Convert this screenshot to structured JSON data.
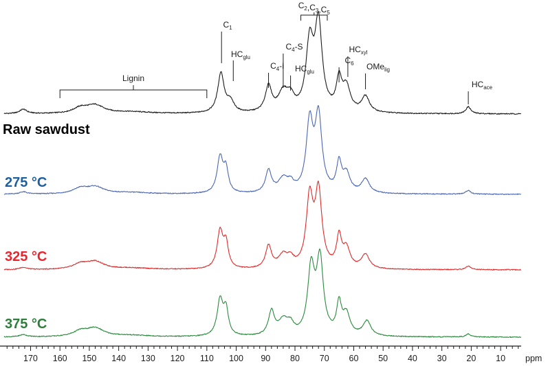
{
  "chart_data": {
    "type": "line",
    "xlabel": "ppm",
    "x_reversed": true,
    "xlim": [
      179,
      3
    ],
    "x_ticks": [
      170,
      160,
      150,
      140,
      130,
      120,
      110,
      100,
      90,
      80,
      70,
      60,
      50,
      40,
      30,
      20,
      10
    ],
    "x_tick_labels": [
      "170",
      "160",
      "150",
      "140",
      "130",
      "120",
      "110",
      "100",
      "90",
      "80",
      "70",
      "60",
      "50",
      "40",
      "30",
      "20",
      "10"
    ],
    "grid": false,
    "series": [
      {
        "name": "Raw sawdust",
        "color": "#1a1a1a",
        "label_color": "#000000",
        "peaks": [
          {
            "ppm": 172.5,
            "height": 0.05,
            "width": 1.5
          },
          {
            "ppm": 153,
            "height": 0.06,
            "width": 3
          },
          {
            "ppm": 148,
            "height": 0.09,
            "width": 3.5
          },
          {
            "ppm": 136,
            "height": 0.02,
            "width": 8
          },
          {
            "ppm": 105.2,
            "height": 0.45,
            "width": 1.3
          },
          {
            "ppm": 102,
            "height": 0.12,
            "width": 1.5
          },
          {
            "ppm": 89,
            "height": 0.29,
            "width": 1.3
          },
          {
            "ppm": 84,
            "height": 0.22,
            "width": 2.0
          },
          {
            "ppm": 81.5,
            "height": 0.14,
            "width": 1.5
          },
          {
            "ppm": 75,
            "height": 0.75,
            "width": 1.5
          },
          {
            "ppm": 72,
            "height": 0.98,
            "width": 1.5
          },
          {
            "ppm": 65,
            "height": 0.34,
            "width": 1.1
          },
          {
            "ppm": 62.5,
            "height": 0.28,
            "width": 1.6
          },
          {
            "ppm": 56,
            "height": 0.18,
            "width": 1.6
          },
          {
            "ppm": 21,
            "height": 0.08,
            "width": 1.0
          }
        ]
      },
      {
        "name": "275 °C",
        "color": "#4a66b5",
        "label_color": "#1f5fa0",
        "peaks": [
          {
            "ppm": 172.5,
            "height": 0.03,
            "width": 1.5
          },
          {
            "ppm": 153,
            "height": 0.07,
            "width": 3
          },
          {
            "ppm": 148,
            "height": 0.09,
            "width": 3.5
          },
          {
            "ppm": 136,
            "height": 0.02,
            "width": 8
          },
          {
            "ppm": 105.5,
            "height": 0.48,
            "width": 1.2
          },
          {
            "ppm": 103.5,
            "height": 0.3,
            "width": 1.0
          },
          {
            "ppm": 89,
            "height": 0.3,
            "width": 1.2
          },
          {
            "ppm": 84,
            "height": 0.18,
            "width": 2.0
          },
          {
            "ppm": 81.5,
            "height": 0.1,
            "width": 1.3
          },
          {
            "ppm": 75,
            "height": 0.92,
            "width": 1.4
          },
          {
            "ppm": 72,
            "height": 1.0,
            "width": 1.4
          },
          {
            "ppm": 65,
            "height": 0.38,
            "width": 1.0
          },
          {
            "ppm": 62.5,
            "height": 0.25,
            "width": 1.5
          },
          {
            "ppm": 56,
            "height": 0.19,
            "width": 1.6
          },
          {
            "ppm": 21,
            "height": 0.05,
            "width": 1.0
          }
        ]
      },
      {
        "name": "325 °C",
        "color": "#e02a2a",
        "label_color": "#e8262e",
        "peaks": [
          {
            "ppm": 172.5,
            "height": 0.03,
            "width": 1.5
          },
          {
            "ppm": 153,
            "height": 0.07,
            "width": 3
          },
          {
            "ppm": 148,
            "height": 0.1,
            "width": 3.5
          },
          {
            "ppm": 136,
            "height": 0.02,
            "width": 8
          },
          {
            "ppm": 105.5,
            "height": 0.5,
            "width": 1.2
          },
          {
            "ppm": 103.5,
            "height": 0.32,
            "width": 1.0
          },
          {
            "ppm": 89,
            "height": 0.3,
            "width": 1.2
          },
          {
            "ppm": 84,
            "height": 0.17,
            "width": 2.0
          },
          {
            "ppm": 81.5,
            "height": 0.1,
            "width": 1.3
          },
          {
            "ppm": 75,
            "height": 0.92,
            "width": 1.4
          },
          {
            "ppm": 72,
            "height": 1.0,
            "width": 1.4
          },
          {
            "ppm": 65,
            "height": 0.4,
            "width": 1.0
          },
          {
            "ppm": 62.5,
            "height": 0.26,
            "width": 1.5
          },
          {
            "ppm": 56,
            "height": 0.19,
            "width": 1.6
          },
          {
            "ppm": 21,
            "height": 0.05,
            "width": 1.0
          }
        ]
      },
      {
        "name": "375 °C",
        "color": "#2a8a3c",
        "label_color": "#2e7d3a",
        "peaks": [
          {
            "ppm": 172.5,
            "height": 0.03,
            "width": 1.5
          },
          {
            "ppm": 153,
            "height": 0.07,
            "width": 3
          },
          {
            "ppm": 148,
            "height": 0.11,
            "width": 3.5
          },
          {
            "ppm": 136,
            "height": 0.02,
            "width": 8
          },
          {
            "ppm": 105.5,
            "height": 0.48,
            "width": 1.2
          },
          {
            "ppm": 103.5,
            "height": 0.34,
            "width": 1.0
          },
          {
            "ppm": 88,
            "height": 0.32,
            "width": 1.2
          },
          {
            "ppm": 84,
            "height": 0.2,
            "width": 2.0
          },
          {
            "ppm": 81.5,
            "height": 0.12,
            "width": 1.3
          },
          {
            "ppm": 74.5,
            "height": 0.88,
            "width": 1.4
          },
          {
            "ppm": 71.5,
            "height": 1.0,
            "width": 1.4
          },
          {
            "ppm": 65,
            "height": 0.4,
            "width": 1.0
          },
          {
            "ppm": 62.5,
            "height": 0.28,
            "width": 1.5
          },
          {
            "ppm": 55.5,
            "height": 0.2,
            "width": 1.6
          },
          {
            "ppm": 21,
            "height": 0.04,
            "width": 1.0
          }
        ]
      }
    ],
    "annotations": [
      {
        "main": "C",
        "sub": "1",
        "after": "",
        "ppm": 105
      },
      {
        "main": "HC",
        "sub": "glu",
        "after": "",
        "ppm": 101
      },
      {
        "main": "C",
        "sub": "4",
        "after": "-i",
        "ppm": 89
      },
      {
        "main": "C",
        "sub": "4",
        "after": "-S",
        "ppm": 84
      },
      {
        "main": "HC",
        "sub": "glu",
        "after": "",
        "ppm": 81.5
      },
      {
        "main": "C",
        "sub": "6",
        "after": "",
        "ppm": 65
      },
      {
        "main": "HC",
        "sub": "xyl",
        "after": "",
        "ppm": 62
      },
      {
        "main": "OMe",
        "sub": "lig",
        "after": "",
        "ppm": 56
      },
      {
        "main": "HC",
        "sub": "ace",
        "after": "",
        "ppm": 21
      }
    ],
    "group_annotations": [
      {
        "label": "Lignin",
        "from_ppm": 160,
        "to_ppm": 110
      },
      {
        "label": "C2,C3,C5",
        "parts": [
          {
            "main": "C",
            "sub": "2"
          },
          {
            "main": ",C",
            "sub": "3"
          },
          {
            "main": ",C",
            "sub": "5"
          }
        ],
        "from_ppm": 78,
        "to_ppm": 69
      }
    ]
  }
}
